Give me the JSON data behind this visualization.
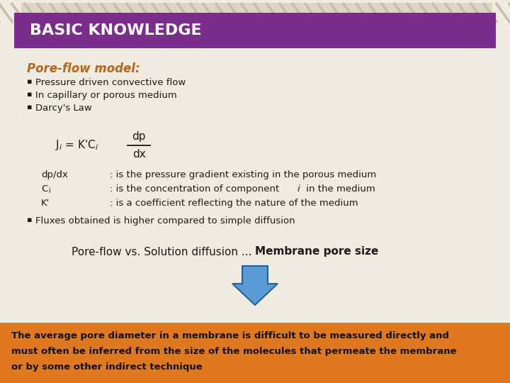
{
  "bg_color": "#f0ebe0",
  "header_bg": "#7b2d8b",
  "header_text": "BASIC KNOWLEDGE",
  "header_text_color": "#ffffff",
  "header_stripe_color": "#ddd5c0",
  "title_text": "Pore-flow model:",
  "title_color": "#b5651d",
  "bullet_color": "#1a1a1a",
  "bullets": [
    "Pressure driven convective flow",
    "In capillary or porous medium",
    "Darcy's Law"
  ],
  "bullet4": "Fluxes obtained is higher compared to simple diffusion",
  "arrow_color": "#5b9bd5",
  "arrow_edge_color": "#2a6099",
  "pore_flow_text_normal": "Pore-flow vs. Solution diffusion ... ",
  "pore_flow_text_bold": "Membrane pore size",
  "pore_flow_color": "#1a1a1a",
  "bottom_bg": "#e07820",
  "bottom_text_line1": "The average pore diameter in a membrane is difficult to be measured directly and",
  "bottom_text_line2": "must often be inferred from the size of the molecules that permeate the membrane",
  "bottom_text_line3": "or by some other indirect technique",
  "bottom_text_color": "#111111",
  "var_lines": [
    [
      "dp/dx",
      ": is the pressure gradient existing in the porous medium"
    ],
    [
      "Ci",
      ": is the concentration of component i in the medium"
    ],
    [
      "K'",
      ": is a coefficient reflecting the nature of the medium"
    ]
  ]
}
